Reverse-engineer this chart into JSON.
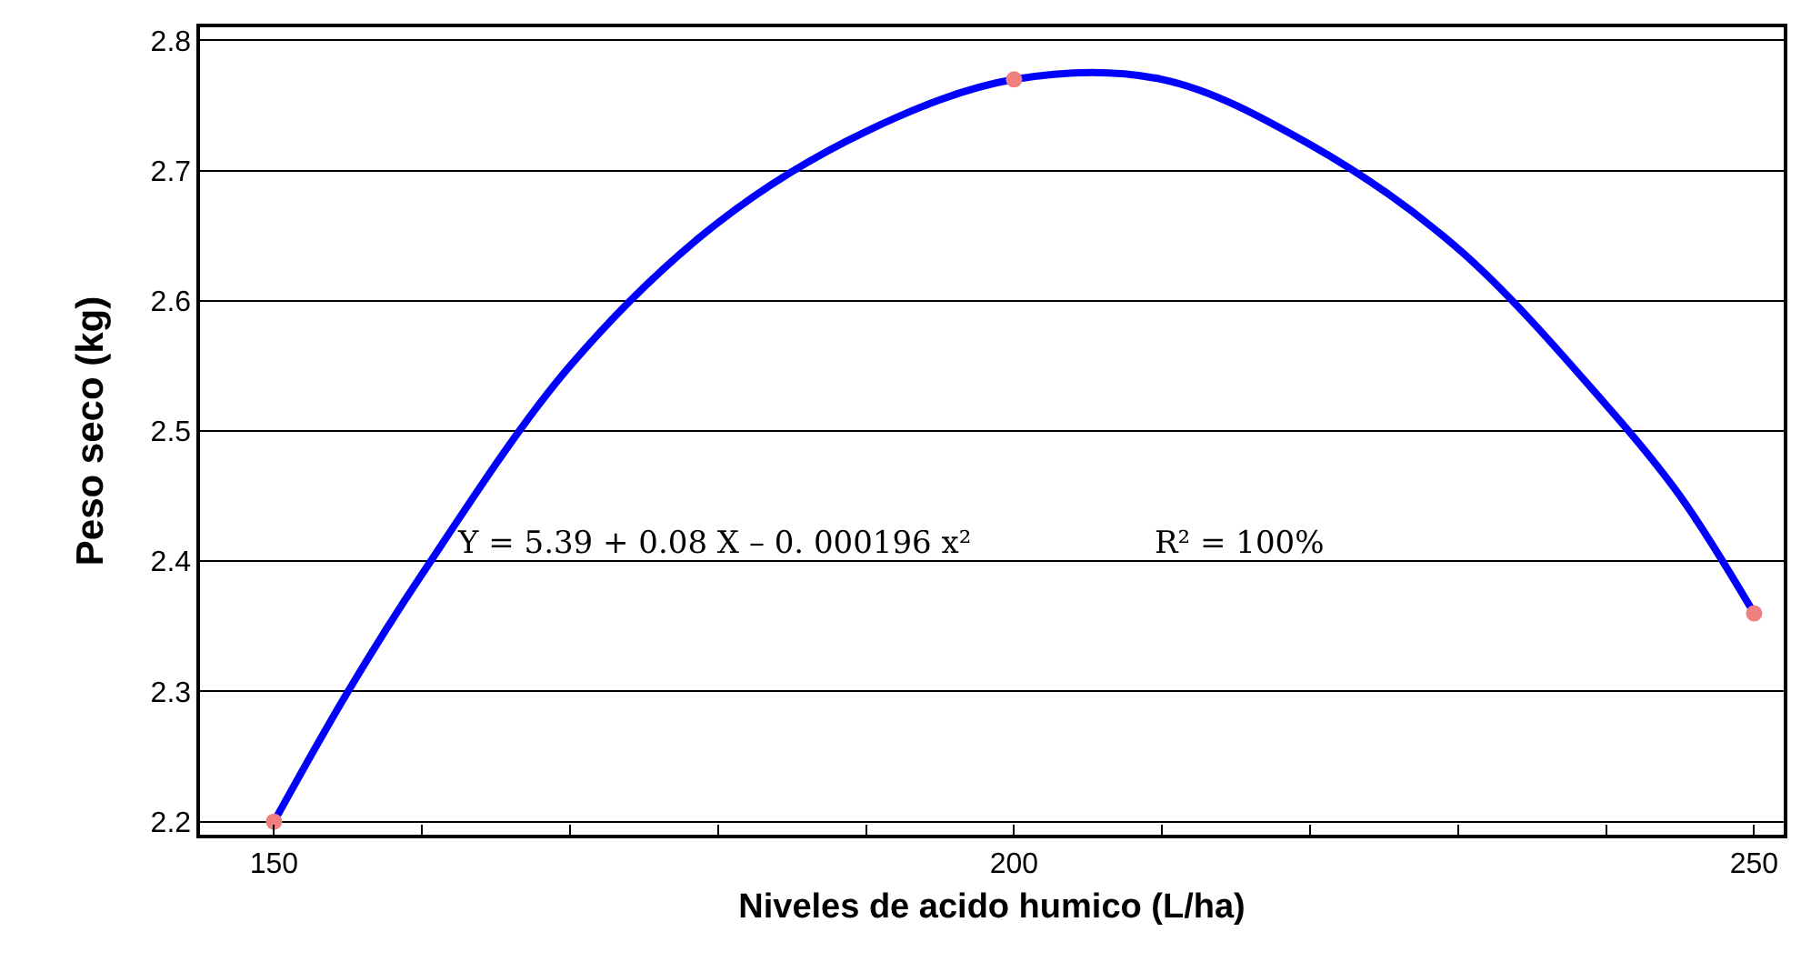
{
  "chart_data": {
    "type": "line",
    "xlabel": "Niveles de acido humico (L/ha)",
    "ylabel": "Peso seco (kg)",
    "xlim": [
      145,
      252
    ],
    "ylim": [
      2.19,
      2.81
    ],
    "xticks": [
      150,
      {
        "value": 160,
        "label": null
      },
      {
        "value": 170,
        "label": null
      },
      {
        "value": 180,
        "label": null
      },
      {
        "value": 190,
        "label": null
      },
      200,
      {
        "value": 210,
        "label": null
      },
      {
        "value": 220,
        "label": null
      },
      {
        "value": 230,
        "label": null
      },
      {
        "value": 240,
        "label": null
      },
      250
    ],
    "yticks": [
      2.2,
      2.3,
      2.4,
      2.5,
      2.6,
      2.7,
      2.8
    ],
    "grid": "y",
    "annotations": [
      "Y = 5.39 + 0.08 X – 0. 000196 x²",
      "R² = 100%"
    ],
    "series": [
      {
        "color": "#0000ff",
        "marker": "none",
        "line_style": "solid",
        "x": [
          150,
          155,
          160,
          170,
          180,
          190,
          200,
          210,
          220,
          230,
          240,
          245,
          250
        ],
        "values": [
          2.2,
          2.3,
          2.39,
          2.55,
          2.66,
          2.73,
          2.77,
          2.77,
          2.72,
          2.64,
          2.52,
          2.45,
          2.36
        ]
      },
      {
        "type": "scatter",
        "color": "#f08080",
        "marker": "circle",
        "x": [
          150,
          200,
          250
        ],
        "values": [
          2.2,
          2.77,
          2.36
        ]
      }
    ]
  }
}
